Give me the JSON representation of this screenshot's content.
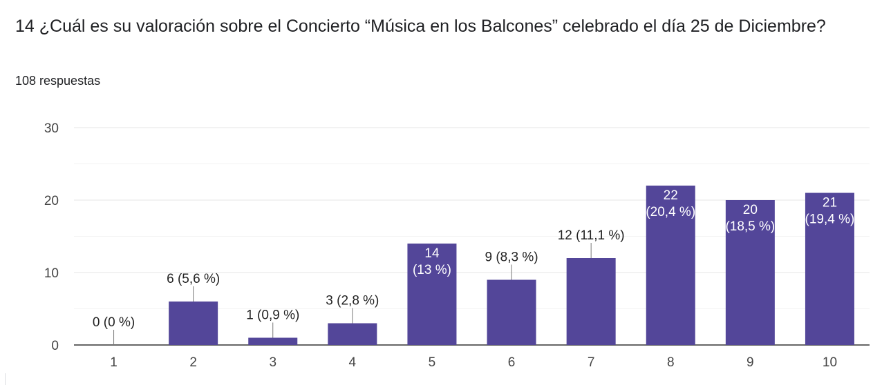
{
  "question": {
    "title": "14 ¿Cuál es su valoración sobre el Concierto “Música en los Balcones” celebrado el día 25 de Diciembre?",
    "responses": "108 respuestas"
  },
  "chart_data": {
    "type": "bar",
    "categories": [
      "1",
      "2",
      "3",
      "4",
      "5",
      "6",
      "7",
      "8",
      "9",
      "10"
    ],
    "values": [
      0,
      6,
      1,
      3,
      14,
      9,
      12,
      22,
      20,
      21
    ],
    "data_labels": [
      "0 (0 %)",
      "6 (5,6 %)",
      "1 (0,9 %)",
      "3 (2,8 %)",
      "14 (13 %)",
      "9 (8,3 %)",
      "12 (11,1 %)",
      "22 (20,4 %)",
      "20 (18,5 %)",
      "21 (19,4 %)"
    ],
    "yticks": [
      "0",
      "10",
      "20",
      "30"
    ],
    "ylim": [
      0,
      30
    ],
    "bar_color": "#534699",
    "grid": true
  }
}
